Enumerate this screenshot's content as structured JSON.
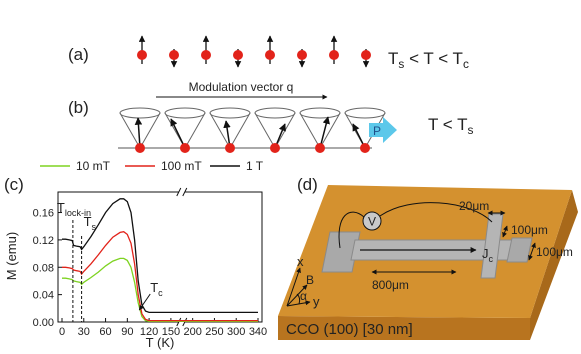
{
  "panel_a": {
    "label": "(a)",
    "condition": [
      "T",
      "s",
      " < T < T",
      "c"
    ]
  },
  "panel_b": {
    "label": "(b)",
    "vector_label": "Modulation vector q",
    "polarization": "P",
    "condition": [
      "T < T",
      "s"
    ]
  },
  "chart_data": {
    "type": "line",
    "label": "(c)",
    "xlabel": "T (K)",
    "ylabel": "M (emu)",
    "x": [
      0,
      5,
      10,
      14,
      16,
      20,
      25,
      27,
      30,
      40,
      50,
      60,
      70,
      80,
      85,
      90,
      95,
      100,
      105,
      110,
      115,
      120,
      150,
      200,
      250,
      300,
      340
    ],
    "series": [
      {
        "name": "10 mT",
        "color": "#7ed321",
        "values": [
          0.064,
          0.064,
          0.063,
          0.062,
          0.06,
          0.059,
          0.058,
          0.055,
          0.058,
          0.065,
          0.073,
          0.082,
          0.089,
          0.093,
          0.093,
          0.09,
          0.08,
          0.058,
          0.028,
          0.008,
          0.002,
          0.001,
          0.001,
          0.001,
          0.001,
          0.001,
          0.001
        ]
      },
      {
        "name": "100 mT",
        "color": "#e2231a",
        "values": [
          0.08,
          0.08,
          0.079,
          0.078,
          0.076,
          0.075,
          0.074,
          0.07,
          0.074,
          0.085,
          0.098,
          0.112,
          0.124,
          0.131,
          0.132,
          0.128,
          0.115,
          0.085,
          0.04,
          0.012,
          0.004,
          0.002,
          0.002,
          0.002,
          0.002,
          0.002,
          0.002
        ]
      },
      {
        "name": "1 T",
        "color": "#111111",
        "values": [
          0.121,
          0.121,
          0.12,
          0.119,
          0.112,
          0.111,
          0.11,
          0.106,
          0.11,
          0.125,
          0.142,
          0.16,
          0.173,
          0.18,
          0.18,
          0.176,
          0.16,
          0.12,
          0.06,
          0.025,
          0.016,
          0.014,
          0.014,
          0.014,
          0.014,
          0.014,
          0.014
        ]
      }
    ],
    "xlim": [
      0,
      340
    ],
    "ylim": [
      0,
      0.19
    ],
    "xticks": [
      0,
      30,
      60,
      90,
      120,
      150,
      200,
      250,
      300,
      340
    ],
    "yticks": [
      {
        "value": 0,
        "label": "0.00"
      },
      {
        "value": 0.04,
        "label": "0.04"
      },
      {
        "value": 0.08,
        "label": "0.08"
      },
      {
        "value": 0.12,
        "label": "0.12"
      },
      {
        "value": 0.16,
        "label": "0.16"
      }
    ],
    "annotations": [
      {
        "text": "T",
        "sub": "lock-in",
        "x": 15
      },
      {
        "text": "T",
        "sub": "s",
        "x": 27
      },
      {
        "text": "T",
        "sub": "c",
        "x": 105
      }
    ]
  },
  "panel_d": {
    "label": "(d)",
    "voltmeter": "V",
    "width_label": "20μm",
    "arm_label": "100μm",
    "arm_length_label": "100μm",
    "length_label": "800μm",
    "current": [
      "J",
      "c"
    ],
    "axes": {
      "x": "x",
      "field": "B",
      "angle": "α",
      "y": "y"
    },
    "substrate": "CCO (100) [30 nm]"
  }
}
